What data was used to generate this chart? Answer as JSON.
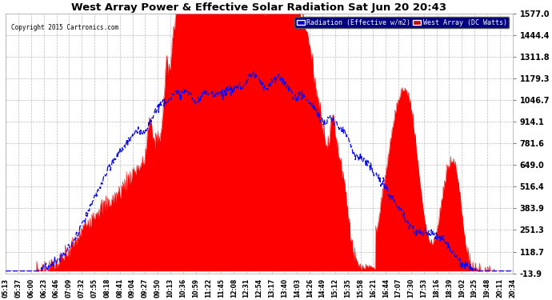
{
  "title": "West Array Power & Effective Solar Radiation Sat Jun 20 20:43",
  "copyright": "Copyright 2015 Cartronics.com",
  "ymin": -13.9,
  "ymax": 1577.0,
  "yticks": [
    -13.9,
    118.7,
    251.3,
    383.9,
    516.4,
    649.0,
    781.6,
    914.1,
    1046.7,
    1179.3,
    1311.8,
    1444.4,
    1577.0
  ],
  "bg_color": "#ffffff",
  "plot_bg_color": "#ffffff",
  "title_color": "#000000",
  "grid_color": "#aaaaaa",
  "red_color": "#ff0000",
  "blue_color": "#0000ff",
  "xtick_labels": [
    "05:13",
    "05:37",
    "06:00",
    "06:23",
    "06:46",
    "07:09",
    "07:32",
    "07:55",
    "08:18",
    "08:41",
    "09:04",
    "09:27",
    "09:50",
    "10:13",
    "10:36",
    "10:59",
    "11:22",
    "11:45",
    "12:08",
    "12:31",
    "12:54",
    "13:17",
    "13:40",
    "14:03",
    "14:26",
    "14:49",
    "15:12",
    "15:35",
    "15:58",
    "16:21",
    "16:44",
    "17:07",
    "17:30",
    "17:53",
    "18:16",
    "18:39",
    "19:02",
    "19:25",
    "19:48",
    "20:11",
    "20:34"
  ]
}
